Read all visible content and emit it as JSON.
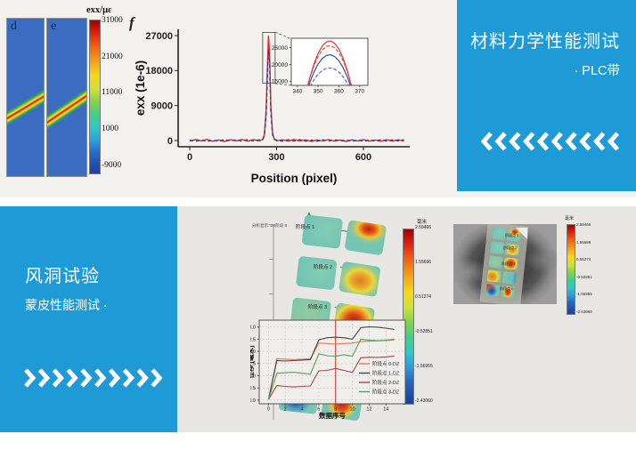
{
  "colors": {
    "accent_blue": "#1e9bd7",
    "strain_band_red": "#e2261b",
    "profile_red": "#d92b1f",
    "profile_blue": "#2b3f9e",
    "marker_line_red": "#cc2222"
  },
  "sections": {
    "top_right_panel": {
      "title": "材料力学性能测试",
      "subtitle": "· PLC带",
      "chevron_count": 10,
      "chevron_direction": "left"
    },
    "bottom_left_panel": {
      "title": "风洞试验",
      "subtitle": "蒙皮性能测试 ·",
      "chevron_count": 10,
      "chevron_direction": "right"
    }
  },
  "strain_figure": {
    "panel_d_label": "d",
    "panel_e_label": "e",
    "panel_f_label": "f",
    "colorbar": {
      "title": "exx/με",
      "ticks": [
        "31000",
        "21000",
        "11000",
        "1000",
        "-9000"
      ]
    }
  },
  "dic_view": {
    "info_lines": [
      "分析",
      "显示: D2",
      "阶段 8"
    ],
    "colorbar_title": "毫米",
    "colorbar_values": [
      "2.59466",
      "1.55696",
      "0.51274",
      "-0.52851",
      "-1.56955",
      "-2.43060"
    ],
    "patch_labels": [
      "阶段点 1",
      "阶段点 2",
      "阶段点 3",
      "阶段点 0"
    ],
    "patches": [
      {
        "type": "teal"
      },
      {
        "type": "red-top"
      },
      {
        "type": "teal"
      },
      {
        "type": "orange-blob"
      },
      {
        "type": "green"
      },
      {
        "type": "red-big"
      },
      {
        "type": "orange-left"
      },
      {
        "type": "teal-blue"
      },
      {
        "type": "blue-blob"
      },
      {
        "type": "red-blob"
      }
    ]
  },
  "chart_data": [
    {
      "id": "strain-profile",
      "type": "line",
      "xlabel": "Position (pixel)",
      "ylabel": "exx (1e-6)",
      "xlim": [
        -40,
        760
      ],
      "ylim": [
        -1600,
        28600
      ],
      "xticks": [
        0,
        300,
        600
      ],
      "yticks": [
        0,
        9000,
        18000,
        27000
      ],
      "zoom_box": {
        "x": [
          252,
          295
        ],
        "y": [
          14800,
          27800
        ]
      },
      "x": [
        0,
        20,
        40,
        60,
        80,
        100,
        120,
        140,
        160,
        180,
        200,
        220,
        240,
        252,
        258,
        264,
        268,
        272,
        276,
        280,
        286,
        292,
        300,
        320,
        340,
        360,
        380,
        400,
        420,
        440,
        460,
        480,
        500,
        520,
        540,
        560,
        580,
        600,
        620,
        640,
        660,
        680,
        700,
        720,
        740
      ],
      "series": [
        {
          "name": "red-solid",
          "color": "#d92b1f",
          "dash": "none",
          "y": [
            -150,
            250,
            -100,
            300,
            -200,
            150,
            -250,
            200,
            -100,
            280,
            -180,
            220,
            -120,
            300,
            1500,
            8000,
            18000,
            27000,
            22000,
            9000,
            2000,
            400,
            -100,
            200,
            -150,
            250,
            -120,
            180,
            -220,
            150,
            -100,
            230,
            -170,
            140,
            -240,
            190,
            -110,
            240,
            -160,
            120,
            -200,
            210,
            -130,
            180,
            -150
          ]
        },
        {
          "name": "blue-dashed",
          "color": "#2b3f9e",
          "dash": "4,3",
          "y": [
            100,
            -200,
            150,
            -250,
            120,
            -180,
            250,
            -120,
            200,
            -150,
            230,
            -100,
            180,
            200,
            1200,
            6500,
            15500,
            23400,
            19500,
            7800,
            1600,
            300,
            150,
            -180,
            200,
            -130,
            220,
            -150,
            100,
            -210,
            180,
            -120,
            210,
            -90,
            170,
            -230,
            130,
            -190,
            140,
            -110,
            190,
            -140,
            160,
            -100,
            200
          ]
        }
      ]
    },
    {
      "id": "strain-profile-inset",
      "type": "line",
      "xlabel": "",
      "ylabel": "",
      "xlim": [
        337,
        374
      ],
      "ylim": [
        13800,
        27800
      ],
      "xticks": [
        340,
        350,
        360,
        370
      ],
      "yticks": [
        15000,
        20000,
        25000
      ],
      "x": [
        342,
        344,
        346,
        348,
        350,
        352,
        354,
        356,
        358,
        360,
        362,
        364,
        366,
        368,
        370
      ],
      "series": [
        {
          "name": "red-solid",
          "color": "#d92b1f",
          "dash": "none",
          "y": [
            5130,
            11130,
            16170,
            20250,
            23370,
            25530,
            26730,
            26970,
            26250,
            24570,
            21930,
            18330,
            13770,
            8250,
            1770
          ]
        },
        {
          "name": "red-dashed",
          "color": "#d9413a",
          "dash": "4,2",
          "y": [
            6464,
            11714,
            16124,
            19694,
            22424,
            24314,
            25364,
            25574,
            24944,
            23474,
            21164,
            18014,
            14024,
            9194,
            3524
          ]
        },
        {
          "name": "blue-solid",
          "color": "#2b3f9e",
          "dash": "none",
          "y": [
            6497,
            10997,
            14778,
            17838,
            20178,
            21798,
            22698,
            22878,
            22338,
            21078,
            19098,
            16398,
            12978,
            8838,
            3978
          ]
        },
        {
          "name": "blue-dashed",
          "color": "#4a5fc0",
          "dash": "4,2",
          "y": [
            7700,
            10800,
            13405,
            15513,
            17125,
            18241,
            18861,
            18985,
            18613,
            17745,
            16381,
            14521,
            12165,
            9313,
            5965
          ]
        }
      ]
    },
    {
      "id": "displacement-vs-index",
      "type": "line",
      "xlabel": "数据序号",
      "ylabel": "位移 [毫米]",
      "xlim": [
        -1.1,
        16.3
      ],
      "ylim": [
        -0.15,
        3.28
      ],
      "xticks": [
        0,
        2,
        4,
        6,
        8,
        10,
        12,
        14
      ],
      "yticks": [
        0,
        0.5,
        1,
        1.5,
        2,
        2.5,
        3
      ],
      "vline": 8,
      "x": [
        0,
        1,
        2,
        3,
        4,
        5,
        6,
        7,
        8,
        9,
        10,
        11,
        12,
        13,
        14,
        15
      ],
      "series": [
        {
          "name": "阶段点 0-DZ",
          "color": "#e0784a",
          "dash": "none",
          "y": [
            0.02,
            1.7,
            1.68,
            1.66,
            1.68,
            1.7,
            2.34,
            2.32,
            2.3,
            2.32,
            2.34,
            2.4,
            2.42,
            2.43,
            2.44,
            2.47
          ]
        },
        {
          "name": "阶段点 1-DZ",
          "color": "#4a443f",
          "dash": "none",
          "y": [
            0.02,
            1.62,
            1.6,
            1.62,
            1.64,
            1.66,
            2.47,
            2.56,
            2.58,
            2.56,
            2.5,
            2.97,
            3.01,
            2.99,
            2.95,
            2.9
          ]
        },
        {
          "name": "阶段点 2-DZ",
          "color": "#9e4c46",
          "dash": "none",
          "y": [
            0.02,
            0.6,
            0.56,
            0.54,
            0.56,
            0.58,
            1.2,
            1.22,
            1.3,
            1.22,
            1.13,
            1.74,
            1.76,
            1.75,
            1.77,
            1.81
          ]
        },
        {
          "name": "阶段点 3-DZ",
          "color": "#58a05f",
          "dash": "none",
          "y": [
            0.02,
            1.1,
            1.12,
            1.14,
            1.1,
            1.06,
            1.9,
            1.82,
            1.8,
            1.86,
            1.8,
            2.5,
            2.46,
            2.44,
            2.46,
            2.5
          ]
        }
      ]
    }
  ]
}
